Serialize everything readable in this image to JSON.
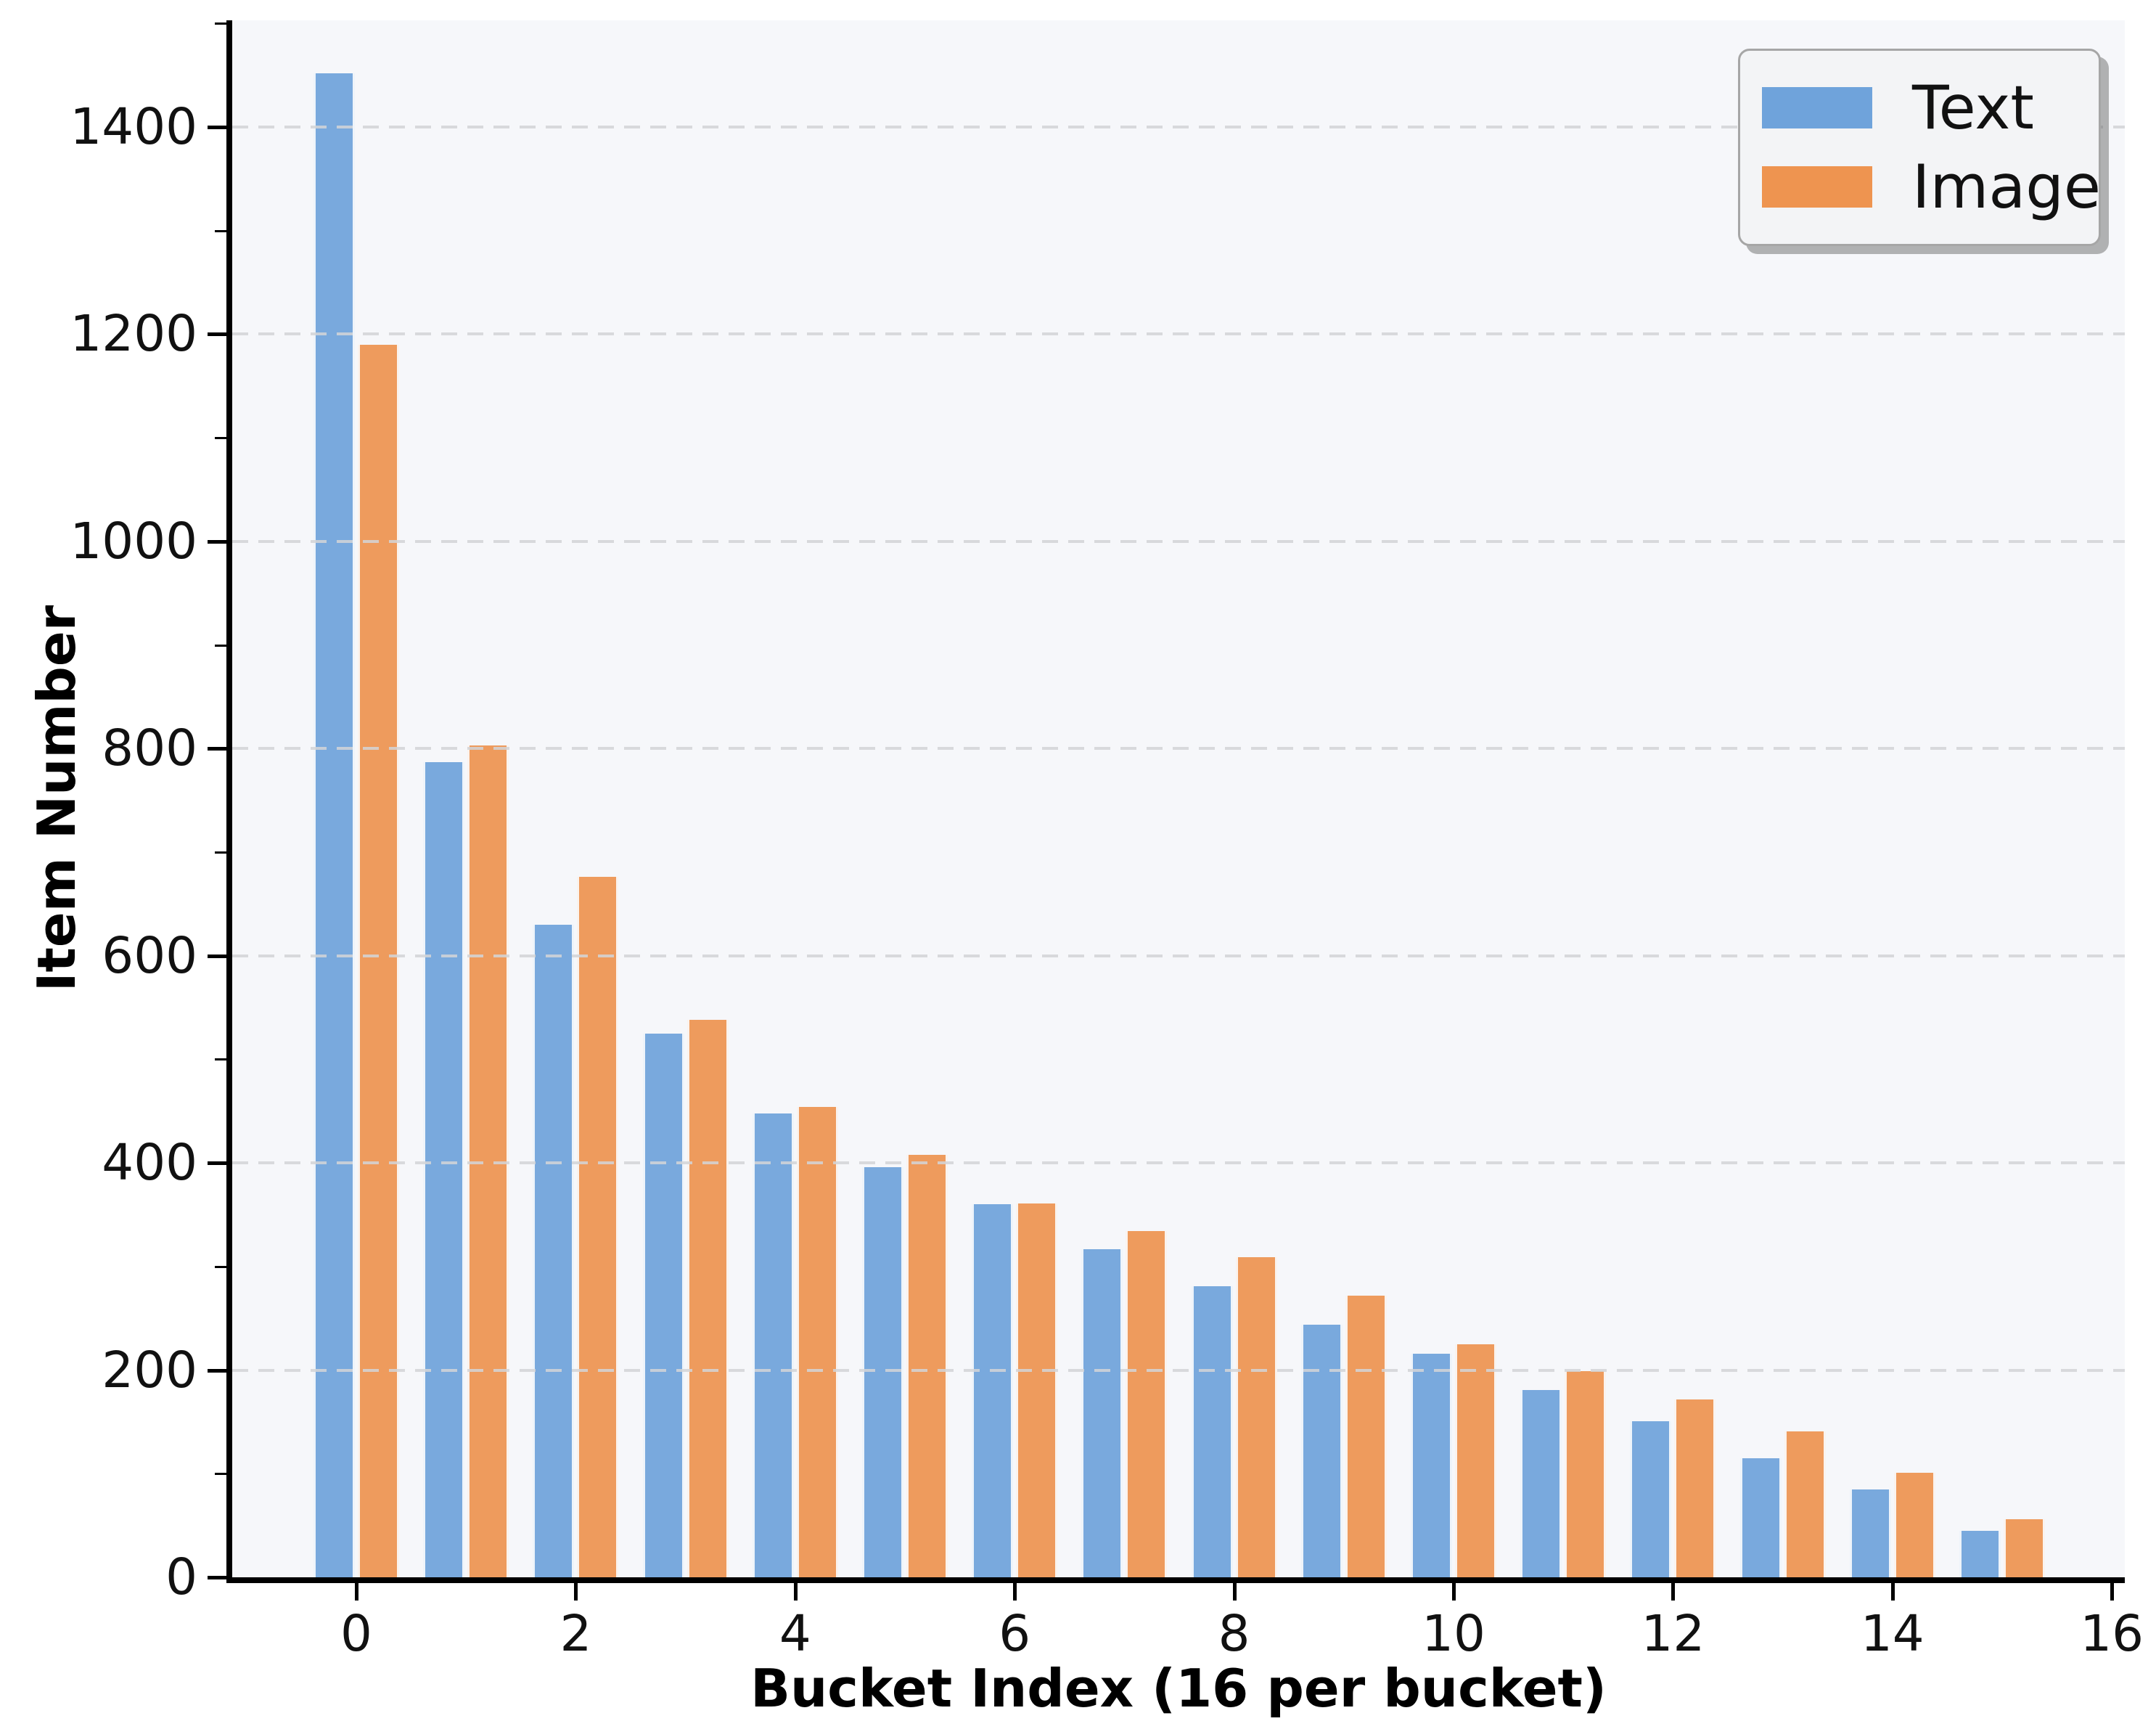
{
  "chart_data": {
    "type": "bar",
    "title": "",
    "xlabel": "Bucket Index (16 per bucket)",
    "ylabel": "Item Number",
    "categories": [
      0,
      1,
      2,
      3,
      4,
      5,
      6,
      7,
      8,
      9,
      10,
      11,
      12,
      13,
      14,
      15
    ],
    "series": [
      {
        "name": "Text",
        "color": "#6FA3DB",
        "values": [
          1452,
          787,
          630,
          525,
          448,
          396,
          360,
          317,
          281,
          244,
          216,
          181,
          151,
          115,
          85,
          45
        ]
      },
      {
        "name": "Image",
        "color": "#EE9450",
        "values": [
          1190,
          803,
          676,
          538,
          454,
          408,
          361,
          334,
          309,
          272,
          225,
          199,
          172,
          141,
          101,
          56
        ]
      }
    ],
    "x_ticks": [
      0,
      2,
      4,
      6,
      8,
      10,
      12,
      14,
      16
    ],
    "y_ticks": [
      0,
      200,
      400,
      600,
      800,
      1000,
      1200,
      1400
    ],
    "y_minor_ticks": [
      100,
      300,
      500,
      700,
      900,
      1100,
      1300,
      1500
    ],
    "ylim": [
      0,
      1503
    ],
    "xlim": [
      -1.13,
      16.12
    ],
    "grid": "horizontal-dashed",
    "legend": {
      "position": "upper-right",
      "labels": [
        "Text",
        "Image"
      ]
    }
  },
  "colors": {
    "figure_background": "#ffffff",
    "plot_background": "#f6f7fa",
    "gridline": "#d3d4d7",
    "spine": "#000000",
    "tick_label": "#111111",
    "bar_text": "#6FA3DB",
    "bar_image": "#EE9450"
  }
}
